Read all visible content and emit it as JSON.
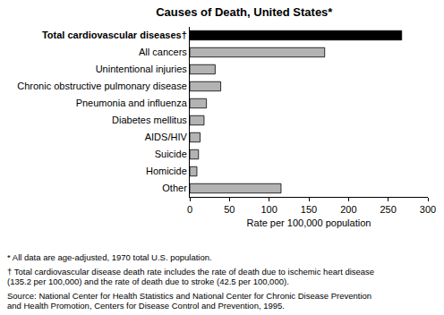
{
  "chart_data": {
    "type": "bar",
    "orientation": "horizontal",
    "title": "Causes of Death, United States*",
    "x_label": "Rate per 100,000 population",
    "categories": [
      "Total cardiovascular diseases†",
      "All cancers",
      "Unintentional injuries",
      "Chronic obstructive pulmonary disease",
      "Pneumonia and influenza",
      "Diabetes mellitus",
      "AIDS/HIV",
      "Suicide",
      "Homicide",
      "Other"
    ],
    "values": [
      267,
      170,
      32,
      39,
      21,
      18,
      13,
      11,
      9,
      115
    ],
    "colors": [
      "#000000",
      "#b3b3b3",
      "#b3b3b3",
      "#b3b3b3",
      "#b3b3b3",
      "#b3b3b3",
      "#b3b3b3",
      "#b3b3b3",
      "#b3b3b3",
      "#b3b3b3"
    ],
    "xlim": [
      0,
      300
    ],
    "xticks": [
      0,
      50,
      100,
      150,
      200,
      250,
      300
    ],
    "grid": false,
    "notes": [
      [
        "* All data are age-adjusted, 1970 total U.S. population."
      ],
      [
        "† Total cardiovascular disease death rate includes the rate of death due to ischemic heart disease",
        "(135.2 per 100,000) and the rate of death due to stroke (42.5 per 100,000)."
      ],
      [
        "Source: National Center for Health Statistics and National Center for Chronic Disease Prevention",
        "and Health Promotion, Centers for Disease Control and Prevention, 1995."
      ]
    ]
  }
}
